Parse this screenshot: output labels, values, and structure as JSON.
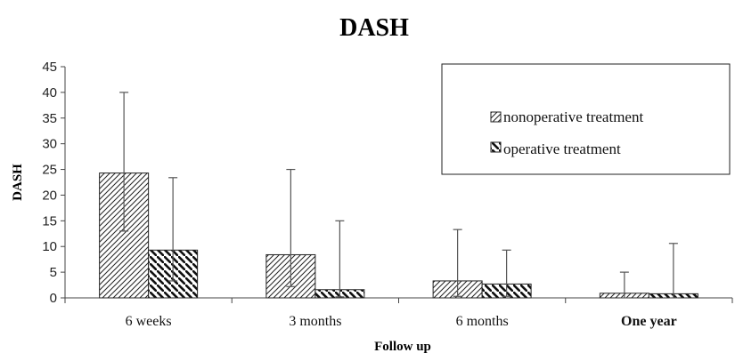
{
  "chart_data": {
    "type": "bar",
    "title": "DASH",
    "xlabel": "Follow up",
    "ylabel": "DASH",
    "ylim": [
      0,
      45
    ],
    "yticks": [
      0,
      5,
      10,
      15,
      20,
      25,
      30,
      35,
      40,
      45
    ],
    "categories": [
      "6 weeks",
      "3 months",
      "6 months",
      "One year"
    ],
    "series": [
      {
        "name": "nonoperative treatment",
        "values": [
          24.3,
          8.4,
          3.3,
          0.9
        ],
        "error_upper": [
          40,
          25,
          13.3,
          5
        ],
        "error_lower": [
          13,
          2.2,
          0.3,
          0
        ],
        "pattern": "hatch-forward"
      },
      {
        "name": "operative treatment",
        "values": [
          9.3,
          1.6,
          2.7,
          0.8
        ],
        "error_upper": [
          23.4,
          15,
          9.3,
          10.6
        ],
        "error_lower": [
          3.3,
          0.2,
          0.3,
          0
        ],
        "pattern": "hatch-backward"
      }
    ],
    "grid": false,
    "legend_position": "top-right"
  }
}
